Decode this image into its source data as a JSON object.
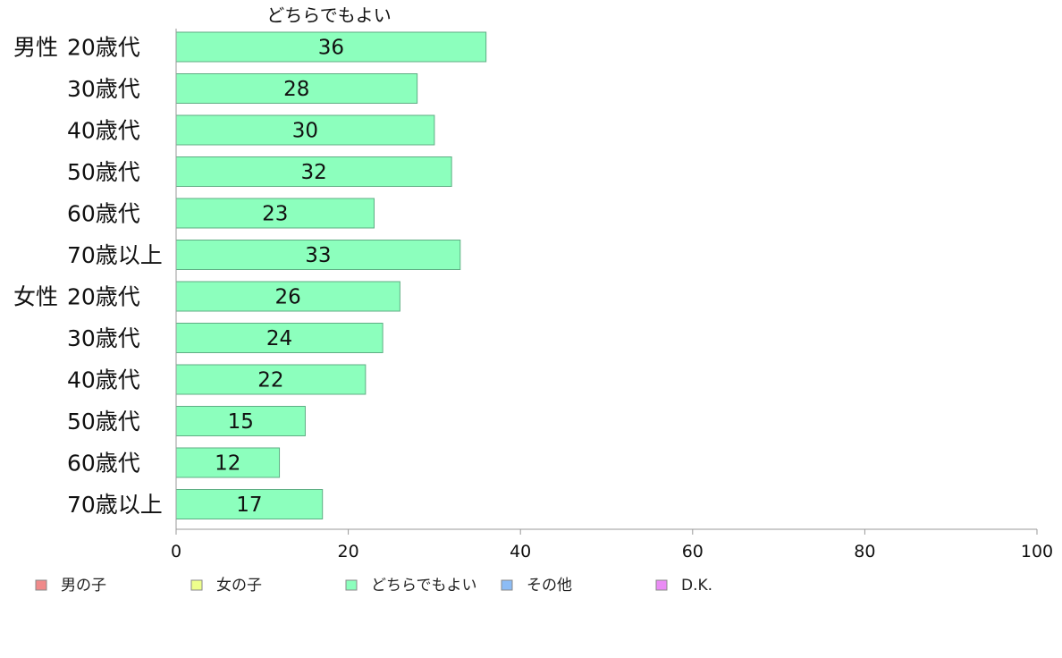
{
  "chart_data": {
    "type": "bar",
    "orientation": "horizontal",
    "series_title": "どちらでもよい",
    "groups": [
      {
        "label": "男性",
        "start_index": 0
      },
      {
        "label": "女性",
        "start_index": 6
      }
    ],
    "categories": [
      "20歳代",
      "30歳代",
      "40歳代",
      "50歳代",
      "60歳代",
      "70歳以上",
      "20歳代",
      "30歳代",
      "40歳代",
      "50歳代",
      "60歳代",
      "70歳以上"
    ],
    "series": [
      {
        "name": "どちらでもよい",
        "values": [
          36,
          28,
          30,
          32,
          23,
          33,
          26,
          24,
          22,
          15,
          12,
          17
        ]
      }
    ],
    "xlim": [
      0,
      100
    ],
    "ticks": [
      0,
      20,
      40,
      60,
      80,
      100
    ],
    "grid": false,
    "bar_color": "#8cffbd",
    "legend_position": "bottom",
    "legend": [
      {
        "label": "男の子",
        "color": "#f08a8a"
      },
      {
        "label": "女の子",
        "color": "#eeff8c"
      },
      {
        "label": "どちらでもよい",
        "color": "#8cffbd"
      },
      {
        "label": "その他",
        "color": "#8cbcf5"
      },
      {
        "label": "D.K.",
        "color": "#ea8cf5"
      }
    ]
  }
}
